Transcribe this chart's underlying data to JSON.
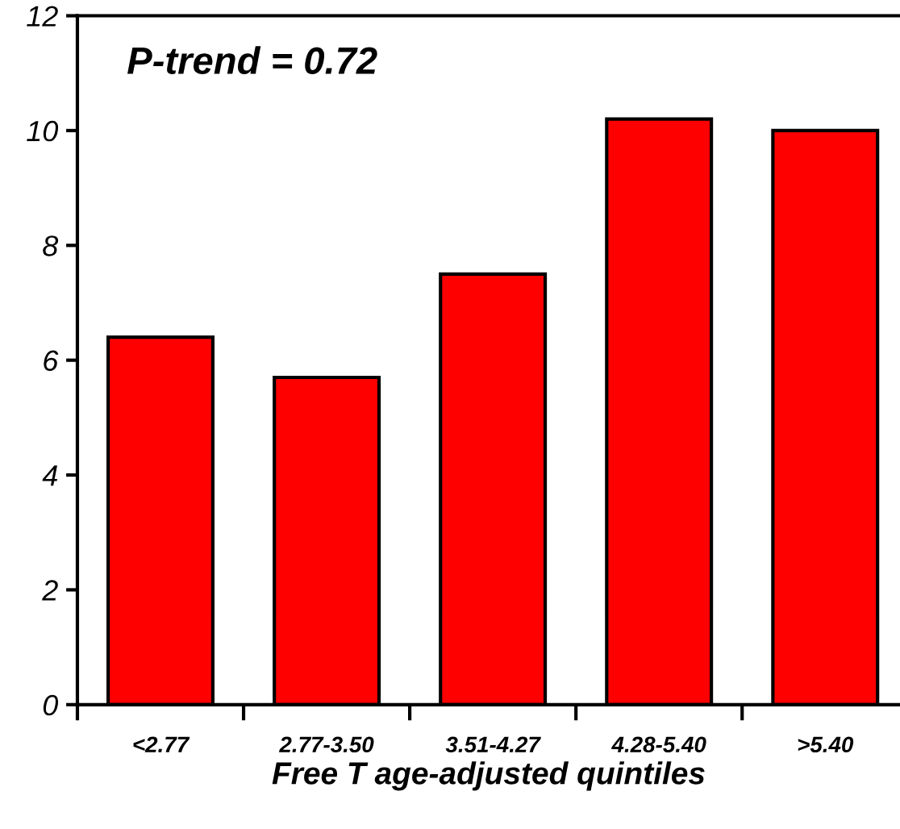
{
  "chart_data": {
    "type": "bar",
    "categories": [
      "<2.77",
      "2.77-3.50",
      "3.51-4.27",
      "4.28-5.40",
      ">5.40"
    ],
    "values": [
      6.4,
      5.7,
      7.5,
      10.2,
      10.0
    ],
    "color": "#ff0000",
    "xlabel": "Free T age-adjusted quintiles",
    "ylim": [
      0,
      12
    ],
    "yticks": [
      0,
      2,
      4,
      6,
      8,
      10,
      12
    ],
    "annotations": [
      "P-trend = 0.72"
    ],
    "grid": false
  }
}
